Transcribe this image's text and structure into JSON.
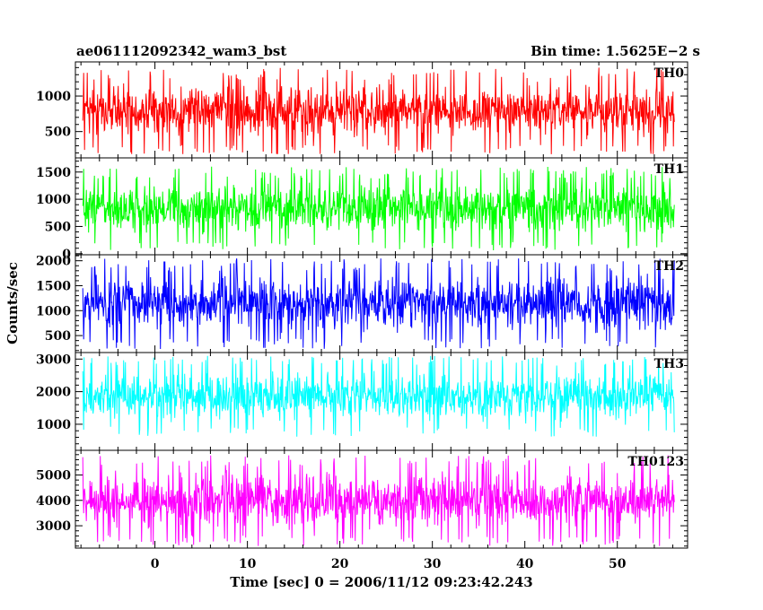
{
  "chart_data": {
    "type": "line",
    "title": "ae061112092342_wam3_bst",
    "subtitle": "Bin time: 1.5625E−2 s",
    "xlabel": "Time [sec] 0 = 2006/11/12 09:23:42.243",
    "ylabel": "Counts/sec",
    "xlim": [
      -8.6,
      57.6
    ],
    "x_ticks": [
      0,
      10,
      20,
      30,
      40,
      50
    ],
    "data_xrange": [
      -7.8,
      56.2
    ],
    "grid": false,
    "panels": [
      {
        "name": "TH0",
        "color": "#ff0000",
        "ylim": [
          130,
          1480
        ],
        "y_ticks": [
          500,
          1000
        ],
        "y_ticks_labeled": [
          500,
          1000
        ],
        "envelope": {
          "low": 180,
          "high": 1400,
          "mean": 700
        }
      },
      {
        "name": "TH1",
        "color": "#00ff00",
        "ylim": [
          -20,
          1760
        ],
        "y_ticks": [
          0,
          500,
          1000,
          1500
        ],
        "y_ticks_labeled": [
          0,
          500,
          1000,
          1500
        ],
        "envelope": {
          "low": 60,
          "high": 1600,
          "mean": 700
        }
      },
      {
        "name": "TH2",
        "color": "#0000ff",
        "ylim": [
          160,
          2120
        ],
        "y_ticks": [
          500,
          1000,
          1500,
          2000
        ],
        "y_ticks_labeled": [
          500,
          1000,
          1500,
          2000
        ],
        "envelope": {
          "low": 230,
          "high": 2050,
          "mean": 1050
        }
      },
      {
        "name": "TH3",
        "color": "#00ffff",
        "ylim": [
          200,
          3200
        ],
        "y_ticks": [
          1000,
          2000,
          3000
        ],
        "y_ticks_labeled": [
          1000,
          2000,
          3000
        ],
        "envelope": {
          "low": 600,
          "high": 3100,
          "mean": 1900
        }
      },
      {
        "name": "TH0123",
        "color": "#ff00ff",
        "ylim": [
          2120,
          5970
        ],
        "y_ticks": [
          3000,
          4000,
          5000
        ],
        "y_ticks_labeled": [
          3000,
          4000,
          5000
        ],
        "envelope": {
          "low": 2200,
          "high": 5800,
          "mean": 3900
        }
      }
    ]
  }
}
